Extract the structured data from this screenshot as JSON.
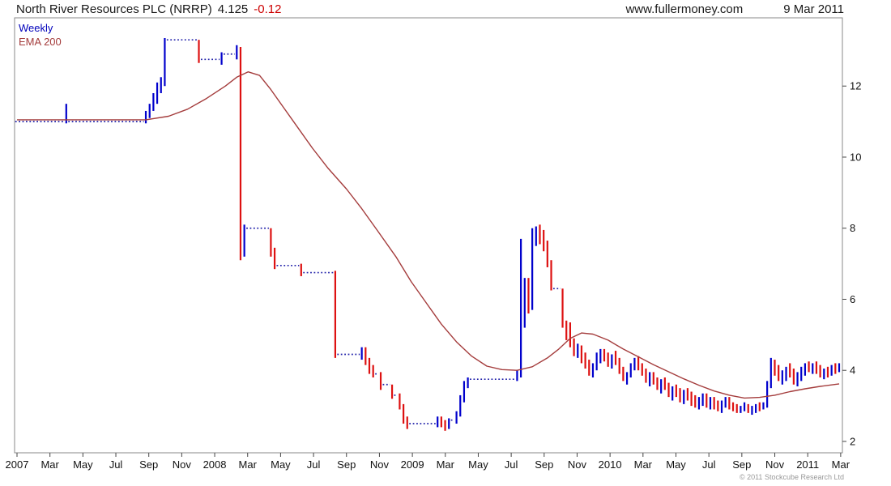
{
  "header": {
    "title": "North River Resources PLC (NRRP)",
    "price": "4.125",
    "change": "-0.12",
    "site": "www.fullermoney.com",
    "date": "9 Mar 2011"
  },
  "legend": {
    "weekly": "Weekly",
    "ema": "EMA 200"
  },
  "footer": {
    "copyright": "© 2011 Stockcube Research Ltd"
  },
  "colors": {
    "up": "#0000cc",
    "down": "#dd1111",
    "flat": "#2222aa",
    "ema": "#a43c3c",
    "axis": "#444444",
    "border": "#8a8a8a",
    "tick_text": "#111111"
  },
  "chart_data": {
    "type": "ohlc-bar",
    "title": "North River Resources PLC (NRRP) weekly bars with 200-period EMA",
    "xlabel": "",
    "ylabel": "",
    "y_ticks": [
      2,
      4,
      6,
      8,
      10,
      12
    ],
    "ylim": [
      1.68,
      13.92
    ],
    "weeks_per_month": 4.348,
    "x_tick_labels": [
      "2007",
      "Mar",
      "May",
      "Jul",
      "Sep",
      "Nov",
      "2008",
      "Mar",
      "May",
      "Jul",
      "Sep",
      "Nov",
      "2009",
      "Mar",
      "May",
      "Jul",
      "Sep",
      "Nov",
      "2010",
      "Mar",
      "May",
      "Jul",
      "Sep",
      "Nov",
      "2011",
      "Mar"
    ],
    "x_tick_month_offsets": [
      0,
      2,
      4,
      6,
      8,
      10,
      12,
      14,
      16,
      18,
      20,
      22,
      24,
      26,
      28,
      30,
      32,
      34,
      36,
      38,
      40,
      42,
      44,
      46,
      48,
      50
    ],
    "weeks": [
      [
        11,
        11,
        11,
        "f"
      ],
      [
        11,
        11,
        11,
        "f"
      ],
      [
        11,
        11,
        11,
        "f"
      ],
      [
        11,
        11,
        11,
        "f"
      ],
      [
        11,
        11,
        11,
        "f"
      ],
      [
        11,
        11,
        11,
        "f"
      ],
      [
        11,
        11,
        11,
        "f"
      ],
      [
        11,
        11,
        11,
        "f"
      ],
      [
        11,
        11,
        11,
        "f"
      ],
      [
        11,
        11,
        11,
        "f"
      ],
      [
        11,
        11,
        11,
        "f"
      ],
      [
        11,
        11,
        11,
        "f"
      ],
      [
        11,
        11,
        11,
        "f"
      ],
      [
        11.5,
        10.95,
        11.05,
        "u"
      ],
      [
        11,
        11,
        11,
        "f"
      ],
      [
        11,
        11,
        11,
        "f"
      ],
      [
        11,
        11,
        11,
        "f"
      ],
      [
        11,
        11,
        11,
        "f"
      ],
      [
        11,
        11,
        11,
        "f"
      ],
      [
        11,
        11,
        11,
        "f"
      ],
      [
        11,
        11,
        11,
        "f"
      ],
      [
        11,
        11,
        11,
        "f"
      ],
      [
        11,
        11,
        11,
        "f"
      ],
      [
        11,
        11,
        11,
        "f"
      ],
      [
        11,
        11,
        11,
        "f"
      ],
      [
        11,
        11,
        11,
        "f"
      ],
      [
        11,
        11,
        11,
        "f"
      ],
      [
        11,
        11,
        11,
        "f"
      ],
      [
        11,
        11,
        11,
        "f"
      ],
      [
        11,
        11,
        11,
        "f"
      ],
      [
        11,
        11,
        11,
        "f"
      ],
      [
        11,
        11,
        11,
        "f"
      ],
      [
        11,
        11,
        11,
        "f"
      ],
      [
        11,
        11,
        11,
        "f"
      ],
      [
        11.3,
        10.95,
        11.2,
        "u"
      ],
      [
        11.5,
        11.1,
        11.4,
        "u"
      ],
      [
        11.8,
        11.3,
        11.7,
        "u"
      ],
      [
        12.1,
        11.5,
        12,
        "u"
      ],
      [
        12.25,
        11.8,
        12.1,
        "u"
      ],
      [
        13.35,
        12,
        13.3,
        "u"
      ],
      [
        13.3,
        13.3,
        13.3,
        "f"
      ],
      [
        13.3,
        13.3,
        13.3,
        "f"
      ],
      [
        13.3,
        13.3,
        13.3,
        "f"
      ],
      [
        13.3,
        13.3,
        13.3,
        "f"
      ],
      [
        13.3,
        13.3,
        13.3,
        "f"
      ],
      [
        13.3,
        13.3,
        13.3,
        "f"
      ],
      [
        13.3,
        13.3,
        13.3,
        "f"
      ],
      [
        13.3,
        13.3,
        13.3,
        "f"
      ],
      [
        13.3,
        12.65,
        12.75,
        "d"
      ],
      [
        12.75,
        12.75,
        12.75,
        "f"
      ],
      [
        12.75,
        12.75,
        12.75,
        "f"
      ],
      [
        12.75,
        12.75,
        12.75,
        "f"
      ],
      [
        12.75,
        12.75,
        12.75,
        "f"
      ],
      [
        12.75,
        12.75,
        12.75,
        "f"
      ],
      [
        12.95,
        12.6,
        12.9,
        "u"
      ],
      [
        12.9,
        12.9,
        12.9,
        "f"
      ],
      [
        12.9,
        12.9,
        12.9,
        "f"
      ],
      [
        12.9,
        12.9,
        12.9,
        "f"
      ],
      [
        13.15,
        12.75,
        13.05,
        "u"
      ],
      [
        13.1,
        7.1,
        7.5,
        "d"
      ],
      [
        8.1,
        7.2,
        8,
        "u"
      ],
      [
        8,
        8,
        8,
        "f"
      ],
      [
        8,
        8,
        8,
        "f"
      ],
      [
        8,
        8,
        8,
        "f"
      ],
      [
        8,
        8,
        8,
        "f"
      ],
      [
        8,
        8,
        8,
        "f"
      ],
      [
        8,
        8,
        8,
        "f"
      ],
      [
        8,
        7.2,
        7.3,
        "d"
      ],
      [
        7.45,
        6.85,
        6.95,
        "d"
      ],
      [
        6.95,
        6.95,
        6.95,
        "f"
      ],
      [
        6.95,
        6.95,
        6.95,
        "f"
      ],
      [
        6.95,
        6.95,
        6.95,
        "f"
      ],
      [
        6.95,
        6.95,
        6.95,
        "f"
      ],
      [
        6.95,
        6.95,
        6.95,
        "f"
      ],
      [
        6.95,
        6.95,
        6.95,
        "f"
      ],
      [
        7,
        6.65,
        6.75,
        "d"
      ],
      [
        6.75,
        6.75,
        6.75,
        "f"
      ],
      [
        6.75,
        6.75,
        6.75,
        "f"
      ],
      [
        6.75,
        6.75,
        6.75,
        "f"
      ],
      [
        6.75,
        6.75,
        6.75,
        "f"
      ],
      [
        6.75,
        6.75,
        6.75,
        "f"
      ],
      [
        6.75,
        6.75,
        6.75,
        "f"
      ],
      [
        6.75,
        6.75,
        6.75,
        "f"
      ],
      [
        6.75,
        6.75,
        6.75,
        "f"
      ],
      [
        6.8,
        4.35,
        4.45,
        "d"
      ],
      [
        4.45,
        4.45,
        4.45,
        "f"
      ],
      [
        4.45,
        4.45,
        4.45,
        "f"
      ],
      [
        4.45,
        4.45,
        4.45,
        "f"
      ],
      [
        4.45,
        4.45,
        4.45,
        "f"
      ],
      [
        4.45,
        4.45,
        4.45,
        "f"
      ],
      [
        4.45,
        4.45,
        4.45,
        "f"
      ],
      [
        4.65,
        4.3,
        4.6,
        "u"
      ],
      [
        4.65,
        4.15,
        4.25,
        "d"
      ],
      [
        4.35,
        3.9,
        4,
        "d"
      ],
      [
        4.15,
        3.8,
        3.9,
        "d"
      ],
      [
        3.9,
        3.9,
        3.9,
        "f"
      ],
      [
        3.95,
        3.45,
        3.55,
        "d"
      ],
      [
        3.6,
        3.6,
        3.6,
        "f"
      ],
      [
        3.6,
        3.6,
        3.6,
        "f"
      ],
      [
        3.6,
        3.2,
        3.3,
        "d"
      ],
      [
        3.3,
        3.3,
        3.3,
        "f"
      ],
      [
        3.35,
        2.9,
        3,
        "d"
      ],
      [
        3.05,
        2.5,
        2.6,
        "d"
      ],
      [
        2.7,
        2.35,
        2.5,
        "d"
      ],
      [
        2.5,
        2.5,
        2.5,
        "f"
      ],
      [
        2.5,
        2.5,
        2.5,
        "f"
      ],
      [
        2.5,
        2.5,
        2.5,
        "f"
      ],
      [
        2.5,
        2.5,
        2.5,
        "f"
      ],
      [
        2.5,
        2.5,
        2.5,
        "f"
      ],
      [
        2.5,
        2.5,
        2.5,
        "f"
      ],
      [
        2.5,
        2.5,
        2.5,
        "f"
      ],
      [
        2.7,
        2.4,
        2.65,
        "u"
      ],
      [
        2.7,
        2.4,
        2.5,
        "d"
      ],
      [
        2.6,
        2.3,
        2.4,
        "d"
      ],
      [
        2.65,
        2.35,
        2.6,
        "u"
      ],
      [
        2.6,
        2.6,
        2.6,
        "f"
      ],
      [
        2.85,
        2.5,
        2.8,
        "u"
      ],
      [
        3.3,
        2.7,
        3.2,
        "u"
      ],
      [
        3.7,
        3.1,
        3.6,
        "u"
      ],
      [
        3.8,
        3.5,
        3.75,
        "u"
      ],
      [
        3.75,
        3.75,
        3.75,
        "f"
      ],
      [
        3.75,
        3.75,
        3.75,
        "f"
      ],
      [
        3.75,
        3.75,
        3.75,
        "f"
      ],
      [
        3.75,
        3.75,
        3.75,
        "f"
      ],
      [
        3.75,
        3.75,
        3.75,
        "f"
      ],
      [
        3.75,
        3.75,
        3.75,
        "f"
      ],
      [
        3.75,
        3.75,
        3.75,
        "f"
      ],
      [
        3.75,
        3.75,
        3.75,
        "f"
      ],
      [
        3.75,
        3.75,
        3.75,
        "f"
      ],
      [
        3.75,
        3.75,
        3.75,
        "f"
      ],
      [
        3.75,
        3.75,
        3.75,
        "f"
      ],
      [
        3.75,
        3.75,
        3.75,
        "f"
      ],
      [
        4,
        3.7,
        3.9,
        "u"
      ],
      [
        7.7,
        3.8,
        5.5,
        "u"
      ],
      [
        6.6,
        5.2,
        6.4,
        "u"
      ],
      [
        6.6,
        5.6,
        5.8,
        "d"
      ],
      [
        8,
        5.7,
        7.9,
        "u"
      ],
      [
        8.05,
        7.5,
        8,
        "u"
      ],
      [
        8.1,
        7.55,
        7.7,
        "d"
      ],
      [
        7.95,
        7.35,
        7.5,
        "d"
      ],
      [
        7.65,
        6.9,
        7,
        "d"
      ],
      [
        7.1,
        6.25,
        6.35,
        "d"
      ],
      [
        6.3,
        6.3,
        6.3,
        "f"
      ],
      [
        6.3,
        6.3,
        6.3,
        "f"
      ],
      [
        6.3,
        5.2,
        5.3,
        "d"
      ],
      [
        5.4,
        4.85,
        5,
        "d"
      ],
      [
        5.35,
        4.65,
        4.75,
        "d"
      ],
      [
        4.9,
        4.4,
        4.5,
        "d"
      ],
      [
        4.75,
        4.35,
        4.65,
        "u"
      ],
      [
        4.7,
        4.2,
        4.3,
        "d"
      ],
      [
        4.5,
        4.05,
        4.15,
        "d"
      ],
      [
        4.3,
        3.85,
        3.95,
        "d"
      ],
      [
        4.2,
        3.8,
        4.1,
        "u"
      ],
      [
        4.5,
        4,
        4.4,
        "u"
      ],
      [
        4.6,
        4.2,
        4.5,
        "u"
      ],
      [
        4.6,
        4.25,
        4.35,
        "d"
      ],
      [
        4.5,
        4.1,
        4.2,
        "d"
      ],
      [
        4.45,
        4.05,
        4.35,
        "u"
      ],
      [
        4.55,
        4.15,
        4.25,
        "d"
      ],
      [
        4.35,
        3.9,
        4,
        "d"
      ],
      [
        4.1,
        3.7,
        3.8,
        "d"
      ],
      [
        3.95,
        3.6,
        3.9,
        "u"
      ],
      [
        4.2,
        3.8,
        4.1,
        "u"
      ],
      [
        4.35,
        4,
        4.2,
        "u"
      ],
      [
        4.4,
        4,
        4.1,
        "d"
      ],
      [
        4.2,
        3.85,
        3.95,
        "d"
      ],
      [
        4.05,
        3.65,
        3.75,
        "d"
      ],
      [
        3.95,
        3.55,
        3.85,
        "u"
      ],
      [
        3.95,
        3.6,
        3.7,
        "d"
      ],
      [
        3.8,
        3.45,
        3.55,
        "d"
      ],
      [
        3.75,
        3.35,
        3.65,
        "u"
      ],
      [
        3.8,
        3.45,
        3.55,
        "d"
      ],
      [
        3.65,
        3.25,
        3.35,
        "d"
      ],
      [
        3.55,
        3.15,
        3.45,
        "u"
      ],
      [
        3.6,
        3.25,
        3.35,
        "d"
      ],
      [
        3.5,
        3.1,
        3.2,
        "d"
      ],
      [
        3.45,
        3.05,
        3.35,
        "u"
      ],
      [
        3.5,
        3.15,
        3.25,
        "d"
      ],
      [
        3.4,
        3,
        3.1,
        "d"
      ],
      [
        3.3,
        2.95,
        3.05,
        "d"
      ],
      [
        3.25,
        2.9,
        3.15,
        "u"
      ],
      [
        3.35,
        3,
        3.25,
        "u"
      ],
      [
        3.35,
        2.95,
        3.05,
        "d"
      ],
      [
        3.25,
        2.9,
        3.15,
        "u"
      ],
      [
        3.25,
        2.9,
        3,
        "d"
      ],
      [
        3.15,
        2.85,
        2.95,
        "d"
      ],
      [
        3.15,
        2.8,
        3.05,
        "u"
      ],
      [
        3.25,
        2.95,
        3.15,
        "u"
      ],
      [
        3.25,
        2.9,
        3,
        "d"
      ],
      [
        3.1,
        2.85,
        2.95,
        "d"
      ],
      [
        3.05,
        2.8,
        2.9,
        "d"
      ],
      [
        3,
        2.8,
        2.95,
        "u"
      ],
      [
        3.1,
        2.85,
        3,
        "u"
      ],
      [
        3.05,
        2.8,
        2.85,
        "d"
      ],
      [
        3,
        2.75,
        2.9,
        "u"
      ],
      [
        3.05,
        2.8,
        2.95,
        "u"
      ],
      [
        3.1,
        2.85,
        2.95,
        "d"
      ],
      [
        3.1,
        2.9,
        3.05,
        "u"
      ],
      [
        3.7,
        2.95,
        3.6,
        "u"
      ],
      [
        4.35,
        3.5,
        4.2,
        "u"
      ],
      [
        4.3,
        3.85,
        3.95,
        "d"
      ],
      [
        4.15,
        3.7,
        3.8,
        "d"
      ],
      [
        4,
        3.6,
        3.9,
        "u"
      ],
      [
        4.1,
        3.7,
        4,
        "u"
      ],
      [
        4.2,
        3.8,
        3.9,
        "d"
      ],
      [
        4.05,
        3.6,
        3.7,
        "d"
      ],
      [
        3.95,
        3.55,
        3.85,
        "u"
      ],
      [
        4.1,
        3.7,
        4,
        "u"
      ],
      [
        4.2,
        3.85,
        4.1,
        "u"
      ],
      [
        4.25,
        3.95,
        4.05,
        "d"
      ],
      [
        4.2,
        3.9,
        4.15,
        "u"
      ],
      [
        4.25,
        3.9,
        4,
        "d"
      ],
      [
        4.15,
        3.8,
        3.9,
        "d"
      ],
      [
        4.05,
        3.75,
        4,
        "u"
      ],
      [
        4.1,
        3.8,
        3.95,
        "d"
      ],
      [
        4.15,
        3.85,
        4.1,
        "u"
      ],
      [
        4.2,
        3.9,
        4,
        "d"
      ],
      [
        4.2,
        3.95,
        4.125,
        "u"
      ]
    ],
    "ema_points": [
      [
        0,
        11.05
      ],
      [
        34,
        11.05
      ],
      [
        40,
        11.15
      ],
      [
        45,
        11.35
      ],
      [
        50,
        11.65
      ],
      [
        55,
        12
      ],
      [
        58,
        12.25
      ],
      [
        61,
        12.4
      ],
      [
        64,
        12.3
      ],
      [
        67,
        11.9
      ],
      [
        70,
        11.45
      ],
      [
        74,
        10.85
      ],
      [
        78,
        10.25
      ],
      [
        82,
        9.7
      ],
      [
        87,
        9.1
      ],
      [
        91,
        8.55
      ],
      [
        95,
        7.95
      ],
      [
        100,
        7.2
      ],
      [
        104,
        6.5
      ],
      [
        108,
        5.9
      ],
      [
        112,
        5.3
      ],
      [
        116,
        4.8
      ],
      [
        120,
        4.4
      ],
      [
        124,
        4.12
      ],
      [
        128,
        4.02
      ],
      [
        132,
        4
      ],
      [
        136,
        4.1
      ],
      [
        140,
        4.35
      ],
      [
        143,
        4.6
      ],
      [
        146,
        4.9
      ],
      [
        149,
        5.05
      ],
      [
        152,
        5.02
      ],
      [
        156,
        4.85
      ],
      [
        160,
        4.6
      ],
      [
        164,
        4.38
      ],
      [
        168,
        4.16
      ],
      [
        172,
        3.96
      ],
      [
        176,
        3.76
      ],
      [
        180,
        3.58
      ],
      [
        184,
        3.42
      ],
      [
        188,
        3.3
      ],
      [
        192,
        3.22
      ],
      [
        196,
        3.24
      ],
      [
        200,
        3.3
      ],
      [
        204,
        3.4
      ],
      [
        208,
        3.48
      ],
      [
        212,
        3.55
      ],
      [
        217,
        3.62
      ]
    ]
  }
}
